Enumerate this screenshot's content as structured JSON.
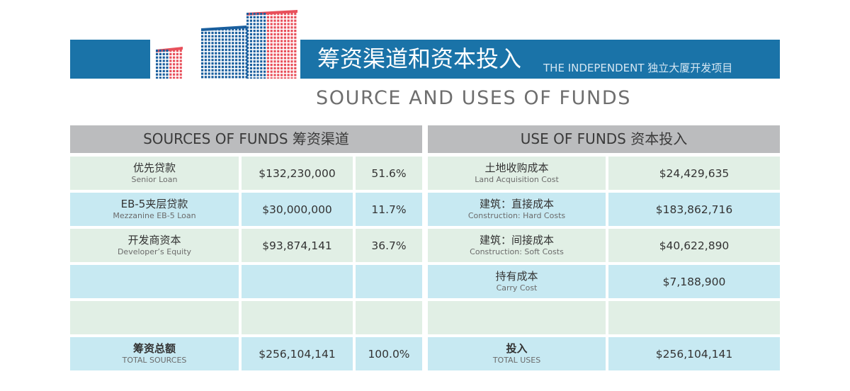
{
  "header": {
    "title_cn": "筹资渠道和资本投入",
    "title_sub": "THE INDEPENDENT 独立大厦开发项目",
    "subtitle": "SOURCE AND USES OF FUNDS"
  },
  "sources": {
    "header": "SOURCES OF FUNDS 筹资渠道",
    "rows": [
      {
        "cn": "优先贷款",
        "en": "Senior Loan",
        "amount": "$132,230,000",
        "percent": "51.6%"
      },
      {
        "cn": "EB-5夹层贷款",
        "en": "Mezzanine EB-5 Loan",
        "amount": "$30,000,000",
        "percent": "11.7%"
      },
      {
        "cn": "开发商资本",
        "en": "Developer’s Equity",
        "amount": "$93,874,141",
        "percent": "36.7%"
      },
      {
        "cn": "",
        "en": "",
        "amount": "",
        "percent": ""
      },
      {
        "cn": "",
        "en": "",
        "amount": "",
        "percent": ""
      }
    ],
    "total": {
      "cn": "筹资总额",
      "en": "TOTAL SOURCES",
      "amount": "$256,104,141",
      "percent": "100.0%"
    }
  },
  "uses": {
    "header": "USE OF FUNDS 资本投入",
    "rows": [
      {
        "cn": "土地收购成本",
        "en": "Land Acquisition Cost",
        "amount": "$24,429,635"
      },
      {
        "cn": "建筑：直接成本",
        "en": "Construction: Hard Costs",
        "amount": "$183,862,716"
      },
      {
        "cn": "建筑：间接成本",
        "en": "Construction: Soft Costs",
        "amount": "$40,622,890"
      },
      {
        "cn": "持有成本",
        "en": "Carry Cost",
        "amount": "$7,188,900"
      },
      {
        "cn": "",
        "en": "",
        "amount": ""
      }
    ],
    "total": {
      "cn": "投入",
      "en": "TOTAL USES",
      "amount": "$256,104,141"
    }
  },
  "colors": {
    "banner": "#1a73a8",
    "table_header": "#bbbcbe",
    "row_green": "#e1efe5",
    "row_blue": "#c7e9f2",
    "building_red": "#e8505b",
    "building_blue": "#1a5f9e"
  }
}
